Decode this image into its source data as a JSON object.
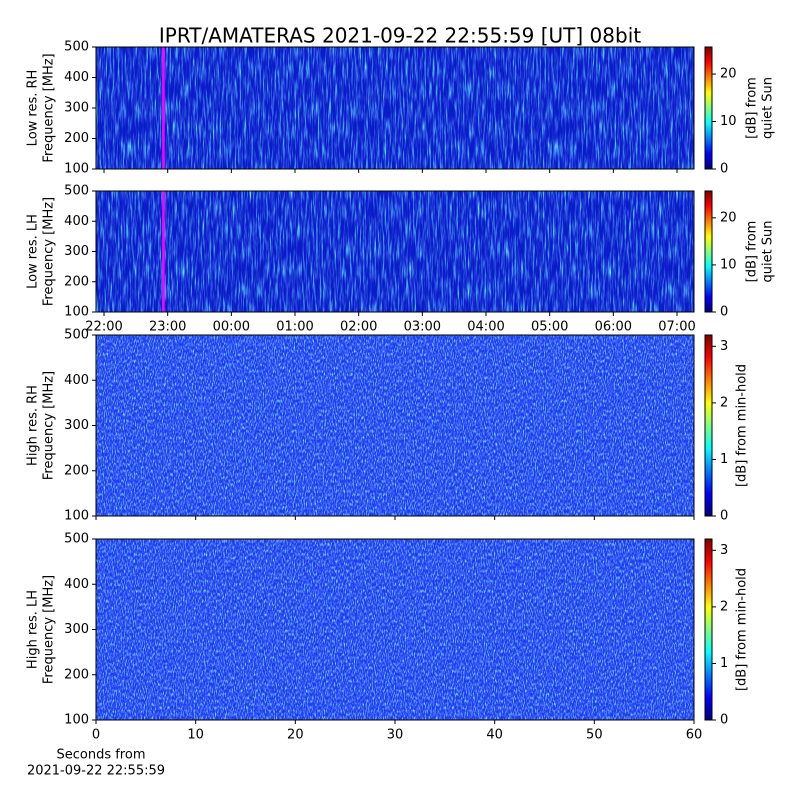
{
  "title": "IPRT/AMATERAS 2021-09-22 22:55:59 [UT]   08bit",
  "chart_data": [
    {
      "type": "heatmap",
      "ylabel": [
        "Low res. RH",
        "Frequency [MHz]"
      ],
      "xlim": [
        21.874,
        31.267
      ],
      "xticks": [
        22,
        23,
        24,
        25,
        26,
        27,
        28,
        29,
        30,
        31
      ],
      "xticklabels": false,
      "ylim": [
        100,
        500
      ],
      "yticks": [
        100,
        200,
        300,
        400,
        500
      ],
      "colormap": "jet",
      "colorbar": {
        "label": [
          "[dB] from",
          "quiet Sun"
        ],
        "lim": [
          0,
          25.7
        ],
        "ticks": [
          0,
          10,
          20
        ]
      },
      "marker_x": 22.933,
      "marker_color": "#ff00ff"
    },
    {
      "type": "heatmap",
      "ylabel": [
        "Low res. LH",
        "Frequency [MHz]"
      ],
      "xlim": [
        21.874,
        31.267
      ],
      "xticks": [
        {
          "value": 22,
          "label": "22:00"
        },
        {
          "value": 23,
          "label": "23:00"
        },
        {
          "value": 24,
          "label": "00:00"
        },
        {
          "value": 25,
          "label": "01:00"
        },
        {
          "value": 26,
          "label": "02:00"
        },
        {
          "value": 27,
          "label": "03:00"
        },
        {
          "value": 28,
          "label": "04:00"
        },
        {
          "value": 29,
          "label": "05:00"
        },
        {
          "value": 30,
          "label": "06:00"
        },
        {
          "value": 31,
          "label": "07:00"
        }
      ],
      "ylim": [
        100,
        500
      ],
      "yticks": [
        100,
        200,
        300,
        400,
        500
      ],
      "colormap": "jet",
      "colorbar": {
        "label": [
          "[dB] from",
          "quiet Sun"
        ],
        "lim": [
          0,
          25.7
        ],
        "ticks": [
          0,
          10,
          20
        ]
      },
      "marker_x": 22.933,
      "marker_color": "#ff00ff"
    },
    {
      "type": "heatmap",
      "ylabel": [
        "High res. RH",
        "Frequency [MHz]"
      ],
      "xlim": [
        0,
        60
      ],
      "xticks": [
        0,
        10,
        20,
        30,
        40,
        50,
        60
      ],
      "xticklabels": false,
      "ylim": [
        100,
        500
      ],
      "yticks": [
        100,
        200,
        300,
        400,
        500
      ],
      "colormap": "jet",
      "colorbar": {
        "label": [
          "[dB] from min-hold"
        ],
        "lim": [
          0,
          3.2
        ],
        "ticks": [
          0,
          1,
          2,
          3
        ]
      }
    },
    {
      "type": "heatmap",
      "ylabel": [
        "High res. LH",
        "Frequency [MHz]"
      ],
      "xlim": [
        0,
        60
      ],
      "xticks": [
        0,
        10,
        20,
        30,
        40,
        50,
        60
      ],
      "xlabel": [
        "Seconds from",
        "2021-09-22 22:55:59"
      ],
      "ylim": [
        100,
        500
      ],
      "yticks": [
        100,
        200,
        300,
        400,
        500
      ],
      "colormap": "jet",
      "colorbar": {
        "label": [
          "[dB] from min-hold"
        ],
        "lim": [
          0,
          3.2
        ],
        "ticks": [
          0,
          1,
          2,
          3
        ]
      }
    }
  ]
}
